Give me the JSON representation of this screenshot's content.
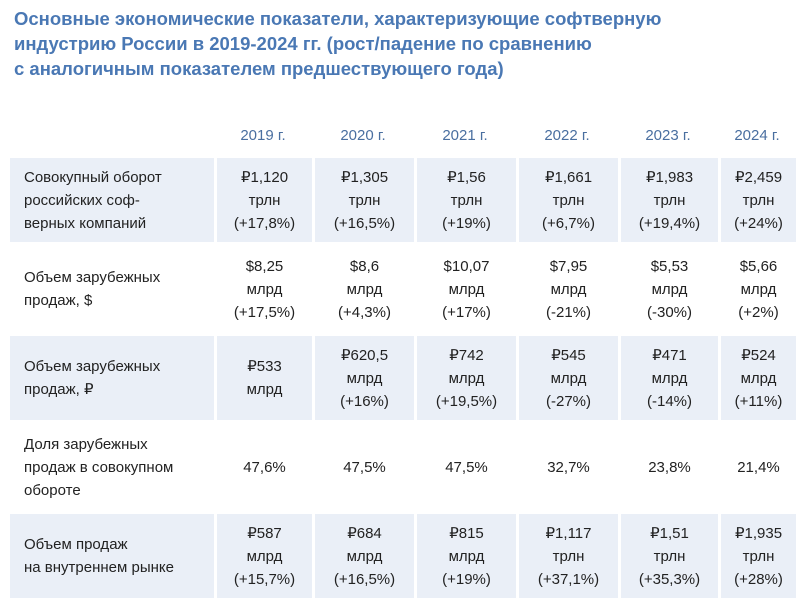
{
  "title": [
    "Основные экономические показатели, характеризующие софтверную",
    "индустрию России в 2019-2024 гг. (рост/падение по сравнению",
    "с аналогичным показателем предшествующего года)"
  ],
  "table": {
    "header": [
      "2019 г.",
      "2020 г.",
      "2021 г.",
      "2022 г.",
      "2023 г.",
      "2024 г."
    ],
    "rows": [
      {
        "label": [
          "Совокупный оборот",
          "российских соф-",
          "верных компаний"
        ],
        "cells": [
          [
            "₽1,120",
            "трлн",
            "(+17,8%)"
          ],
          [
            "₽1,305",
            "трлн",
            "(+16,5%)"
          ],
          [
            "₽1,56",
            "трлн",
            "(+19%)"
          ],
          [
            "₽1,661",
            "трлн",
            "(+6,7%)"
          ],
          [
            "₽1,983",
            "трлн",
            "(+19,4%)"
          ],
          [
            "₽2,459",
            "трлн",
            "(+24%)"
          ]
        ]
      },
      {
        "label": [
          "Объем зарубежных",
          "продаж, $"
        ],
        "cells": [
          [
            "$8,25",
            "млрд",
            "(+17,5%)"
          ],
          [
            "$8,6",
            "млрд",
            "(+4,3%)"
          ],
          [
            "$10,07",
            "млрд",
            "(+17%)"
          ],
          [
            "$7,95",
            "млрд",
            "(-21%)"
          ],
          [
            "$5,53",
            "млрд",
            "(-30%)"
          ],
          [
            "$5,66",
            "млрд",
            "(+2%)"
          ]
        ]
      },
      {
        "label": [
          "Объем зарубежных",
          "продаж, ₽"
        ],
        "cells": [
          [
            "₽533",
            "млрд"
          ],
          [
            "₽620,5",
            "млрд",
            "(+16%)"
          ],
          [
            "₽742",
            "млрд",
            "(+19,5%)"
          ],
          [
            "₽545",
            "млрд",
            "(-27%)"
          ],
          [
            "₽471",
            "млрд",
            "(-14%)"
          ],
          [
            "₽524",
            "млрд",
            "(+11%)"
          ]
        ]
      },
      {
        "label": [
          "Доля зарубежных",
          "продаж в совокупном",
          "обороте"
        ],
        "cells": [
          [
            "47,6%"
          ],
          [
            "47,5%"
          ],
          [
            "47,5%"
          ],
          [
            "32,7%"
          ],
          [
            "23,8%"
          ],
          [
            "21,4%"
          ]
        ]
      },
      {
        "label": [
          "Объем продаж",
          "на внутреннем рынке"
        ],
        "cells": [
          [
            "₽587",
            "млрд",
            "(+15,7%)"
          ],
          [
            "₽684",
            "млрд",
            "(+16,5%)"
          ],
          [
            "₽815",
            "млрд",
            "(+19%)"
          ],
          [
            "₽1,117",
            "трлн",
            "(+37,1%)"
          ],
          [
            "₽1,51",
            "трлн",
            "(+35,3%)"
          ],
          [
            "₽1,935",
            "трлн",
            "(+28%)"
          ]
        ]
      }
    ]
  }
}
